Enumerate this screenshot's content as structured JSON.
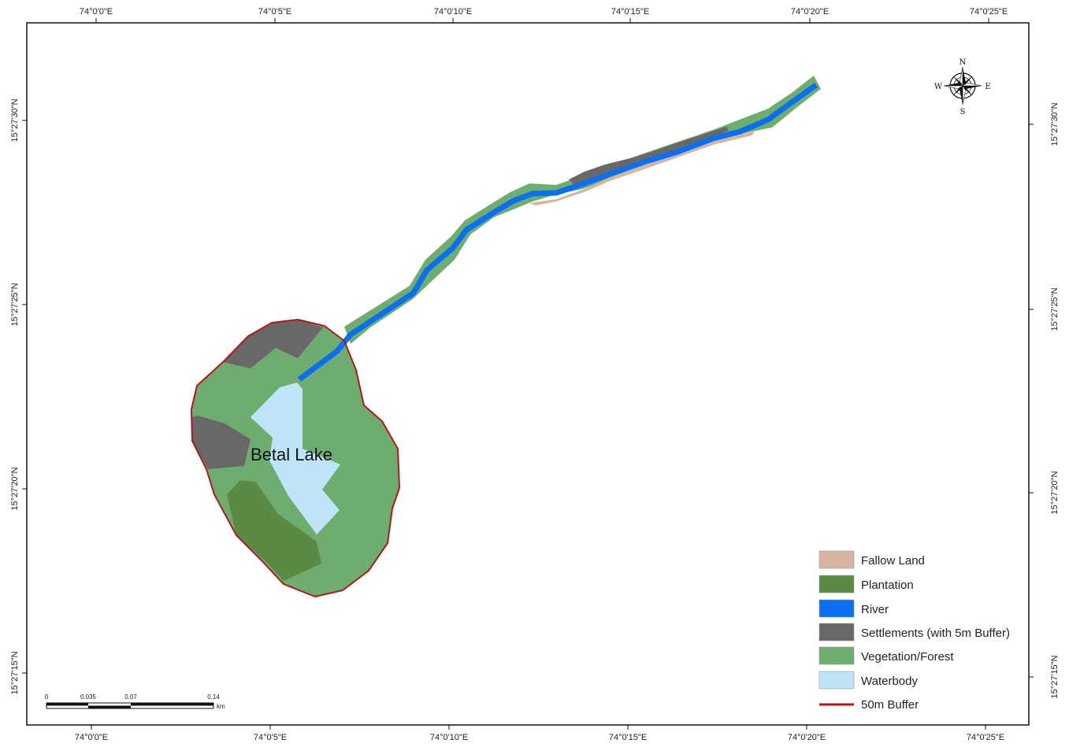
{
  "map": {
    "place_label": "Betal Lake",
    "lon_ticks": [
      "74°0'0\"E",
      "74°0'5\"E",
      "74°0'10\"E",
      "74°0'15\"E",
      "74°0'20\"E",
      "74°0'25\"E"
    ],
    "lat_ticks": [
      "15°27'30\"N",
      "15°27'25\"N",
      "15°27'20\"N",
      "15°27'15\"N"
    ],
    "north_arrow": {
      "n": "N",
      "s": "S",
      "e": "E",
      "w": "W",
      "icon": "compass-rose-icon"
    },
    "scale_bar": {
      "ticks": [
        "0",
        "0.035",
        "0.07",
        "0.14"
      ],
      "unit": "km"
    }
  },
  "legend": {
    "items": [
      {
        "label": "Fallow Land",
        "color": "#d5b4a2"
      },
      {
        "label": "Plantation",
        "color": "#5a8a43"
      },
      {
        "label": "River",
        "color": "#0a6ff0"
      },
      {
        "label": "Settlements (with 5m Buffer)",
        "color": "#686868"
      },
      {
        "label": "Vegetation/Forest",
        "color": "#6fac6f"
      },
      {
        "label": "Waterbody",
        "color": "#bfe4f8"
      }
    ],
    "buffer_item": {
      "label": "50m Buffer",
      "color": "#b0191c"
    }
  }
}
